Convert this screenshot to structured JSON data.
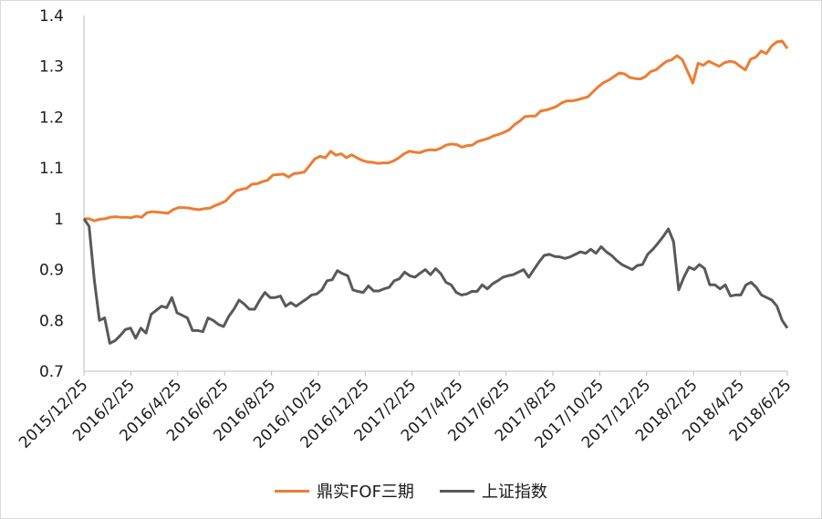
{
  "chart_data": {
    "type": "line",
    "title": "",
    "xlabel": "",
    "ylabel": "",
    "ylim": [
      0.7,
      1.4
    ],
    "y_ticks": [
      "0.7",
      "0.8",
      "0.9",
      "1",
      "1.1",
      "1.2",
      "1.3",
      "1.4"
    ],
    "x_tick_labels": [
      "2015/12/25",
      "2016/2/25",
      "2016/4/25",
      "2016/6/25",
      "2016/8/25",
      "2016/10/25",
      "2016/12/25",
      "2017/2/25",
      "2017/4/25",
      "2017/6/25",
      "2017/8/25",
      "2017/10/25",
      "2017/12/25",
      "2018/2/25",
      "2018/4/25",
      "2018/6/25"
    ],
    "grid": false,
    "legend_position": "bottom",
    "series": [
      {
        "name": "鼎实FOF三期",
        "color": "#ED7D31",
        "values": [
          1.0,
          1.0,
          0.996,
          0.999,
          1.0,
          1.003,
          1.004,
          1.003,
          1.003,
          1.002,
          1.005,
          1.003,
          1.012,
          1.014,
          1.013,
          1.012,
          1.011,
          1.018,
          1.022,
          1.022,
          1.021,
          1.019,
          1.018,
          1.02,
          1.021,
          1.026,
          1.03,
          1.035,
          1.046,
          1.055,
          1.058,
          1.06,
          1.068,
          1.069,
          1.073,
          1.076,
          1.086,
          1.087,
          1.088,
          1.082,
          1.089,
          1.09,
          1.092,
          1.105,
          1.118,
          1.123,
          1.12,
          1.133,
          1.125,
          1.128,
          1.12,
          1.126,
          1.12,
          1.115,
          1.112,
          1.111,
          1.109,
          1.11,
          1.11,
          1.114,
          1.12,
          1.128,
          1.133,
          1.131,
          1.13,
          1.134,
          1.136,
          1.135,
          1.139,
          1.145,
          1.147,
          1.146,
          1.141,
          1.144,
          1.145,
          1.152,
          1.155,
          1.158,
          1.163,
          1.166,
          1.17,
          1.175,
          1.185,
          1.192,
          1.201,
          1.202,
          1.202,
          1.212,
          1.214,
          1.217,
          1.221,
          1.228,
          1.232,
          1.232,
          1.234,
          1.237,
          1.24,
          1.25,
          1.26,
          1.268,
          1.273,
          1.28,
          1.287,
          1.285,
          1.278,
          1.276,
          1.275,
          1.28,
          1.29,
          1.293,
          1.302,
          1.31,
          1.313,
          1.321,
          1.313,
          1.29,
          1.267,
          1.306,
          1.302,
          1.31,
          1.305,
          1.3,
          1.307,
          1.31,
          1.308,
          1.3,
          1.293,
          1.314,
          1.318,
          1.33,
          1.325,
          1.34,
          1.348,
          1.35,
          1.335
        ]
      },
      {
        "name": "上证指数",
        "color": "#595959",
        "values": [
          1.0,
          0.985,
          0.88,
          0.8,
          0.805,
          0.755,
          0.76,
          0.77,
          0.782,
          0.785,
          0.765,
          0.785,
          0.775,
          0.812,
          0.82,
          0.828,
          0.825,
          0.845,
          0.815,
          0.81,
          0.805,
          0.78,
          0.78,
          0.778,
          0.805,
          0.8,
          0.792,
          0.788,
          0.808,
          0.822,
          0.84,
          0.832,
          0.822,
          0.822,
          0.84,
          0.855,
          0.845,
          0.845,
          0.848,
          0.828,
          0.835,
          0.828,
          0.835,
          0.842,
          0.85,
          0.852,
          0.86,
          0.878,
          0.88,
          0.898,
          0.892,
          0.888,
          0.86,
          0.857,
          0.855,
          0.868,
          0.858,
          0.858,
          0.862,
          0.865,
          0.878,
          0.882,
          0.895,
          0.888,
          0.885,
          0.893,
          0.9,
          0.89,
          0.902,
          0.892,
          0.875,
          0.87,
          0.855,
          0.85,
          0.852,
          0.857,
          0.857,
          0.87,
          0.862,
          0.872,
          0.878,
          0.885,
          0.888,
          0.89,
          0.895,
          0.9,
          0.885,
          0.9,
          0.915,
          0.928,
          0.93,
          0.926,
          0.925,
          0.922,
          0.925,
          0.93,
          0.935,
          0.932,
          0.94,
          0.932,
          0.945,
          0.935,
          0.928,
          0.918,
          0.91,
          0.905,
          0.9,
          0.908,
          0.91,
          0.93,
          0.94,
          0.952,
          0.965,
          0.98,
          0.955,
          0.86,
          0.885,
          0.905,
          0.9,
          0.91,
          0.902,
          0.87,
          0.87,
          0.862,
          0.87,
          0.848,
          0.85,
          0.85,
          0.87,
          0.875,
          0.865,
          0.85,
          0.845,
          0.84,
          0.828,
          0.8,
          0.785
        ]
      }
    ]
  }
}
